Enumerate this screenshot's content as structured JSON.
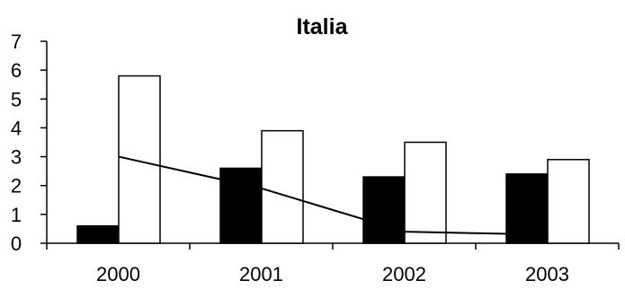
{
  "chart_data": {
    "type": "bar",
    "title": "Italia",
    "xlabel": "",
    "ylabel": "",
    "categories": [
      "2000",
      "2001",
      "2002",
      "2003"
    ],
    "ylim": [
      0,
      7
    ],
    "yticks": [
      0,
      1,
      2,
      3,
      4,
      5,
      6,
      7
    ],
    "grid": false,
    "legend": "none",
    "series": [
      {
        "kind": "bar",
        "color": "#000000",
        "values": [
          0.6,
          2.6,
          2.3,
          2.4
        ]
      },
      {
        "kind": "bar",
        "color": "#ffffff",
        "values": [
          5.8,
          3.9,
          3.5,
          2.9
        ]
      },
      {
        "kind": "line",
        "color": "#000000",
        "values": [
          3.0,
          1.9,
          0.4,
          0.3
        ]
      }
    ]
  }
}
